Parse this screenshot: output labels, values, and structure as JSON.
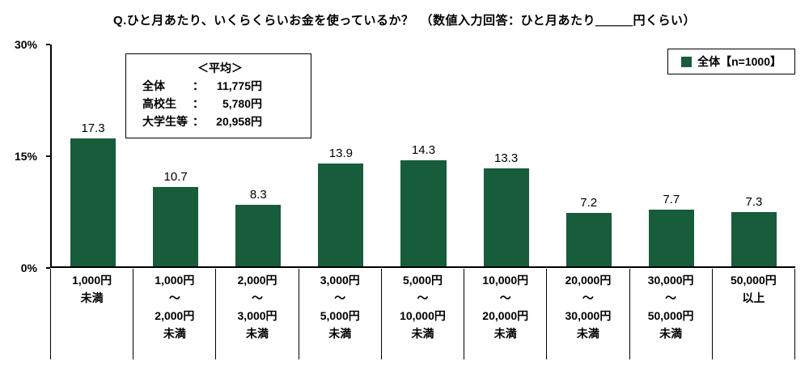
{
  "title": "Q.ひと月あたり、いくらくらいお金を使っているか？　（数値入力回答：ひと月あたり＿＿＿円くらい）",
  "legend": {
    "label": "全体【n=1000】",
    "marker_color": "#175c3b"
  },
  "avg_box": {
    "title": "＜平均＞",
    "rows": [
      {
        "label": "全体",
        "value": "11,775",
        "unit": "円"
      },
      {
        "label": "高校生",
        "value": "5,780",
        "unit": "円"
      },
      {
        "label": "大学生等",
        "value": "20,958",
        "unit": "円"
      }
    ]
  },
  "chart_data": {
    "type": "bar",
    "title": "Q.ひと月あたり、いくらくらいお金を使っているか？（数値入力回答：ひと月あたり＿＿＿円くらい）",
    "series_name": "全体【n=1000】",
    "categories": [
      [
        "1,000円",
        "未満"
      ],
      [
        "1,000円",
        "〜",
        "2,000円",
        "未満"
      ],
      [
        "2,000円",
        "〜",
        "3,000円",
        "未満"
      ],
      [
        "3,000円",
        "〜",
        "5,000円",
        "未満"
      ],
      [
        "5,000円",
        "〜",
        "10,000円",
        "未満"
      ],
      [
        "10,000円",
        "〜",
        "20,000円",
        "未満"
      ],
      [
        "20,000円",
        "〜",
        "30,000円",
        "未満"
      ],
      [
        "30,000円",
        "〜",
        "50,000円",
        "未満"
      ],
      [
        "50,000円",
        "以上"
      ]
    ],
    "values": [
      17.3,
      10.7,
      8.3,
      13.9,
      14.3,
      13.3,
      7.2,
      7.7,
      7.3
    ],
    "xlabel": "",
    "ylabel": "",
    "ylim": [
      0,
      30
    ],
    "yticks": [
      "30%",
      "15%",
      "0%"
    ],
    "grid": false,
    "legend_position": "top-right",
    "bar_color": "#175c3b"
  }
}
